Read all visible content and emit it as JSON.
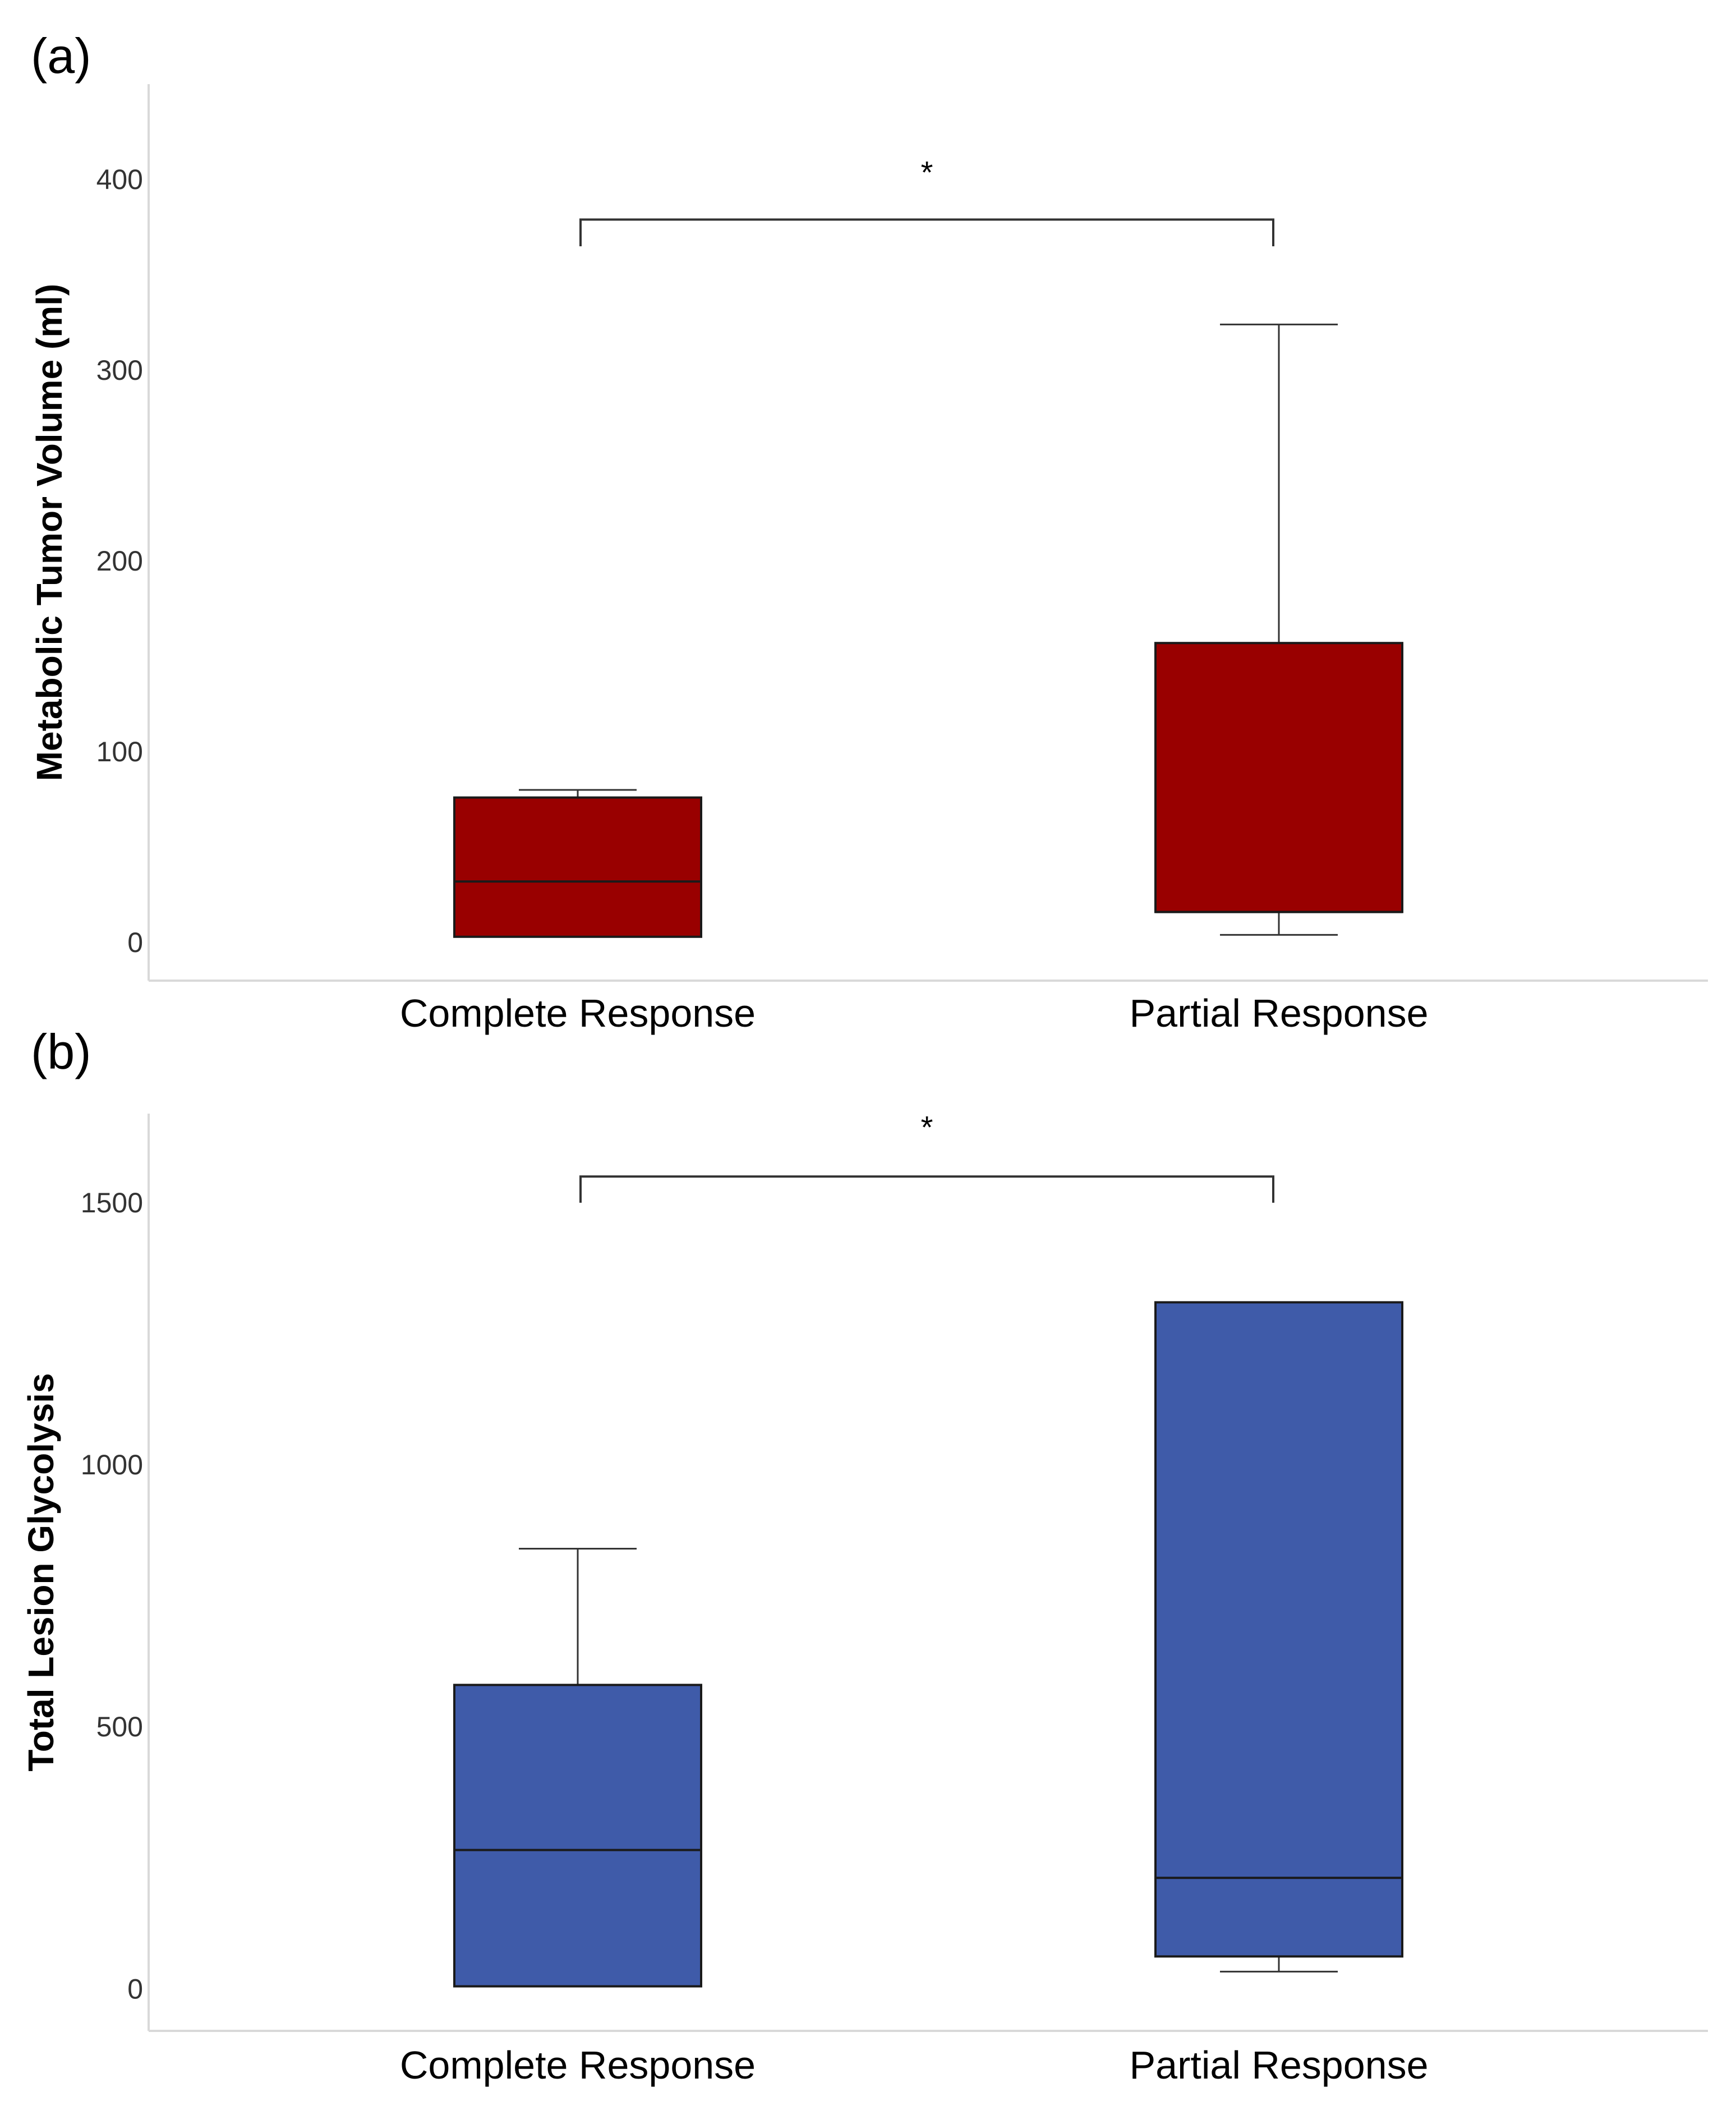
{
  "chart_data": [
    {
      "panel_label": "(a)",
      "type": "box",
      "categories": [
        "Complete Response",
        "Partial Response"
      ],
      "ylabel": "Metabolic Tumor Volume (ml)",
      "xlabel": "",
      "ylim": [
        -20,
        450
      ],
      "yticks": [
        0,
        100,
        200,
        300,
        400
      ],
      "boxes": [
        {
          "category": "Complete Response",
          "whisker_low": 3,
          "q1": 3,
          "median": 32,
          "q3": 76,
          "whisker_high": 80
        },
        {
          "category": "Partial Response",
          "whisker_low": 4,
          "q1": 16,
          "median": 16,
          "q3": 157,
          "whisker_high": 324
        }
      ],
      "fill_color": "#990000",
      "significance": {
        "label": "*",
        "from": "Complete Response",
        "to": "Partial Response",
        "bracket_y": 379,
        "bracket_drop_y": 365,
        "label_y": 404
      }
    },
    {
      "panel_label": "(b)",
      "type": "box",
      "categories": [
        "Complete Response",
        "Partial Response"
      ],
      "ylabel": "Total Lesion Glycolysis",
      "xlabel": "",
      "ylim": [
        -80,
        1670
      ],
      "yticks": [
        0,
        500,
        1000,
        1500
      ],
      "boxes": [
        {
          "category": "Complete Response",
          "whisker_low": 5,
          "q1": 5,
          "median": 265,
          "q3": 580,
          "whisker_high": 840
        },
        {
          "category": "Partial Response",
          "whisker_low": 33,
          "q1": 62,
          "median": 212,
          "q3": 1310,
          "whisker_high": 1310
        }
      ],
      "fill_color": "#3f5ba9",
      "significance": {
        "label": "*",
        "from": "Complete Response",
        "to": "Partial Response",
        "bracket_y": 1550,
        "bracket_drop_y": 1500,
        "label_y": 1645
      }
    }
  ]
}
